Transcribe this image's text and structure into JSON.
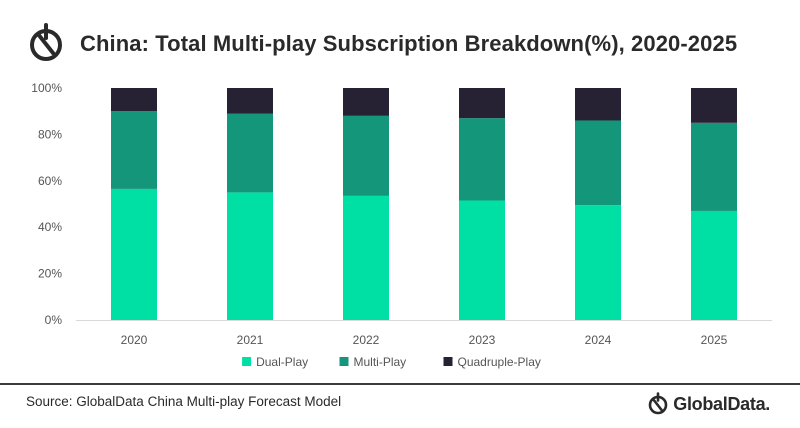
{
  "header": {
    "title": "China: Total Multi-play Subscription Breakdown(%), 2020-2025"
  },
  "footer": {
    "source": "Source: GlobalData China Multi-play Forecast Model",
    "brand": "GlobalData."
  },
  "colors": {
    "dual_play": "#00e0a4",
    "multi_play": "#139679",
    "quadruple_play": "#272134",
    "axis_text": "#555555",
    "gridline": "#d9d9d9",
    "brand_dark": "#2a2a2a"
  },
  "icons": {
    "header_logo": "globaldata-logo-icon",
    "footer_logo": "globaldata-logo-icon"
  },
  "chart_data": {
    "type": "bar",
    "stacked": true,
    "title": "China: Total Multi-play Subscription Breakdown(%), 2020-2025",
    "categories": [
      "2020",
      "2021",
      "2022",
      "2023",
      "2024",
      "2025"
    ],
    "series": [
      {
        "name": "Dual-Play",
        "values": [
          56.5,
          55,
          53.5,
          51.5,
          49.5,
          47
        ],
        "color": "#00e0a4"
      },
      {
        "name": "Multi-Play",
        "values": [
          33.5,
          34,
          34.5,
          35.5,
          36.5,
          38
        ],
        "color": "#139679"
      },
      {
        "name": "Quadruple-Play",
        "values": [
          10,
          11,
          12,
          13,
          14,
          15
        ],
        "color": "#272134"
      }
    ],
    "ylim": [
      0,
      100
    ],
    "yticks": [
      "0%",
      "20%",
      "40%",
      "60%",
      "80%",
      "100%"
    ],
    "ytick_values": [
      0,
      20,
      40,
      60,
      80,
      100
    ],
    "xlabel": "",
    "ylabel": "",
    "grid": false,
    "legend": {
      "placement": "bottom-center",
      "items": [
        "Dual-Play",
        "Multi-Play",
        "Quadruple-Play"
      ]
    }
  }
}
